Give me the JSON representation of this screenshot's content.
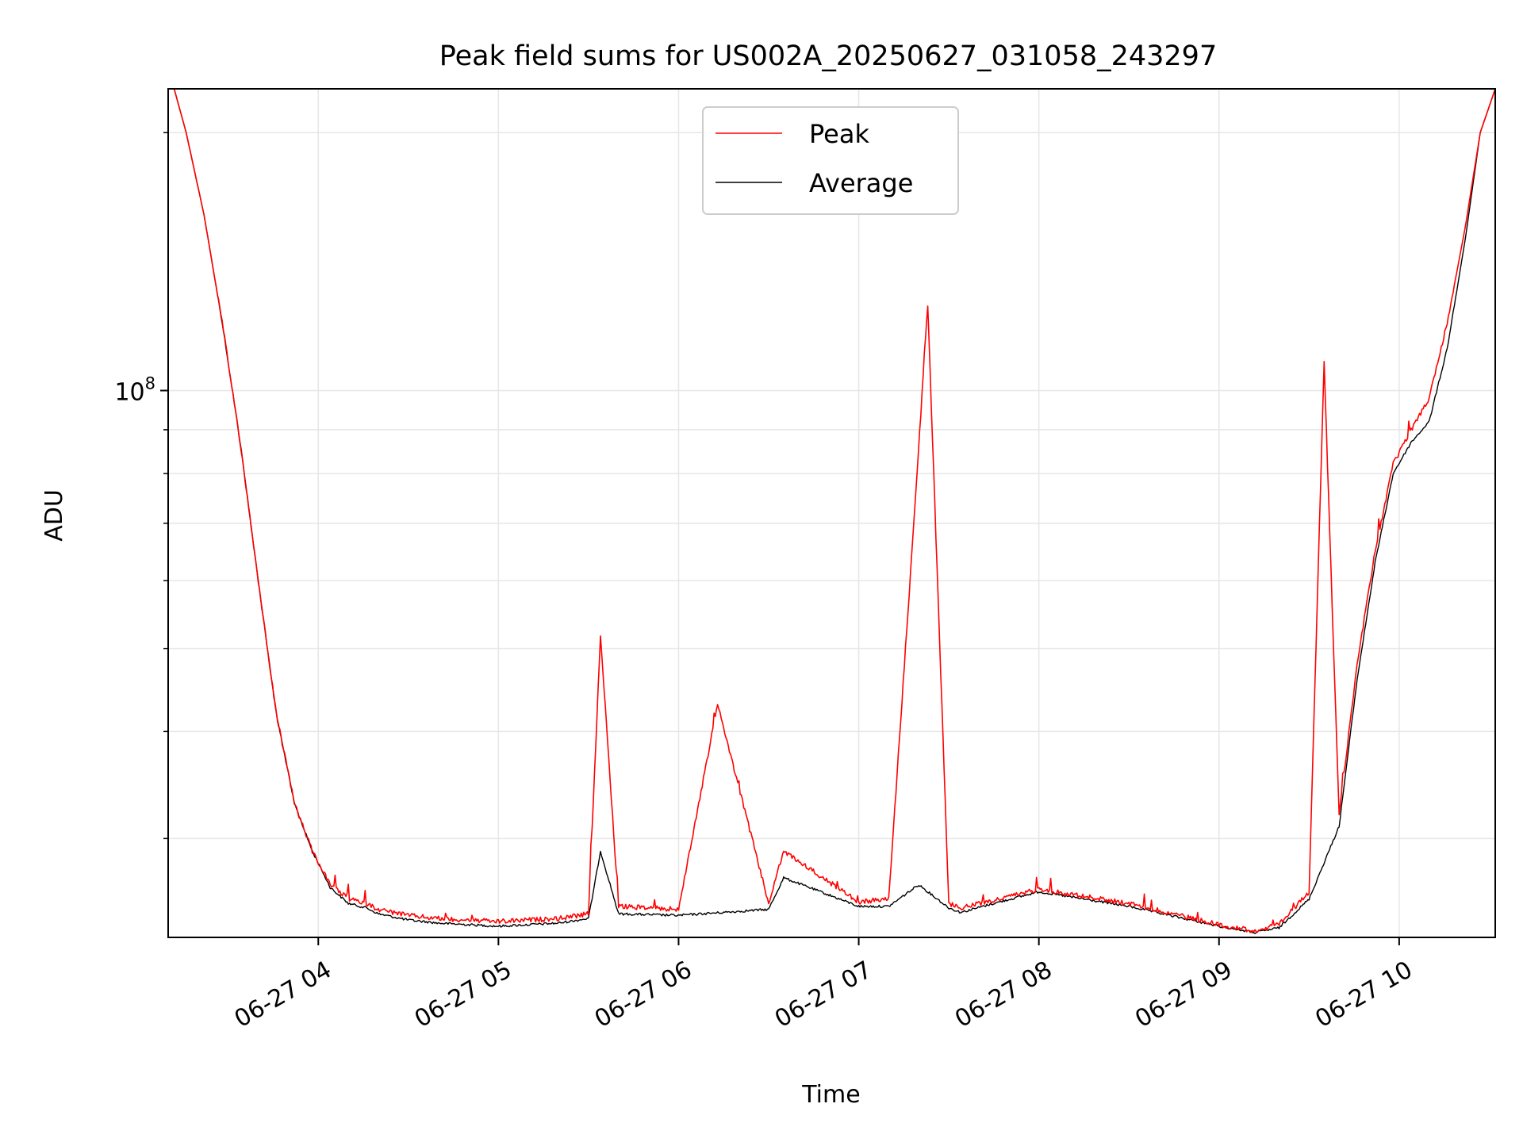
{
  "chart_data": {
    "type": "line",
    "title": "Peak field sums for US002A_20250627_031058_243297",
    "xlabel": "Time",
    "ylabel": "ADU",
    "yscale": "log",
    "grid": true,
    "legend_position": "top-center",
    "xlim": [
      "2025-06-27T03:10",
      "2025-06-27T10:32"
    ],
    "ylim": [
      23000000.0,
      225000000.0
    ],
    "x_ticks": [
      "2025-06-27T04:00",
      "2025-06-27T05:00",
      "2025-06-27T06:00",
      "2025-06-27T07:00",
      "2025-06-27T08:00",
      "2025-06-27T09:00",
      "2025-06-27T10:00"
    ],
    "x_tick_labels": [
      "06-27 04",
      "06-27 05",
      "06-27 06",
      "06-27 07",
      "06-27 08",
      "06-27 09",
      "06-27 10"
    ],
    "y_ticks": [
      100000000
    ],
    "y_tick_labels": [
      {
        "base": "10",
        "exp": "8"
      }
    ],
    "y_minor_ticks": [
      30000000,
      40000000,
      50000000,
      60000000,
      70000000,
      80000000,
      90000000,
      200000000
    ],
    "series": [
      {
        "name": "Peak",
        "color": "#ff0000",
        "x": [
          "2025-06-27T03:10",
          "2025-06-27T03:12",
          "2025-06-27T03:16",
          "2025-06-27T03:22",
          "2025-06-27T03:28",
          "2025-06-27T03:34",
          "2025-06-27T03:40",
          "2025-06-27T03:46",
          "2025-06-27T03:52",
          "2025-06-27T03:58",
          "2025-06-27T04:04",
          "2025-06-27T04:10",
          "2025-06-27T04:16",
          "2025-06-27T04:20",
          "2025-06-27T04:30",
          "2025-06-27T04:40",
          "2025-06-27T05:00",
          "2025-06-27T05:20",
          "2025-06-27T05:30",
          "2025-06-27T05:34",
          "2025-06-27T05:40",
          "2025-06-27T06:00",
          "2025-06-27T06:13",
          "2025-06-27T06:30",
          "2025-06-27T06:35",
          "2025-06-27T07:00",
          "2025-06-27T07:10",
          "2025-06-27T07:18",
          "2025-06-27T07:23",
          "2025-06-27T07:30",
          "2025-06-27T07:34",
          "2025-06-27T07:45",
          "2025-06-27T08:00",
          "2025-06-27T08:30",
          "2025-06-27T09:00",
          "2025-06-27T09:12",
          "2025-06-27T09:20",
          "2025-06-27T09:30",
          "2025-06-27T09:35",
          "2025-06-27T09:40",
          "2025-06-27T09:46",
          "2025-06-27T09:52",
          "2025-06-27T09:58",
          "2025-06-27T10:04",
          "2025-06-27T10:10",
          "2025-06-27T10:16",
          "2025-06-27T10:22",
          "2025-06-27T10:27",
          "2025-06-27T10:32"
        ],
        "y": [
          225000000,
          225000000,
          200000000,
          160000000,
          120000000,
          87000000,
          60000000,
          42000000,
          33000000,
          29000000,
          26500000,
          25500000,
          25200000,
          24800000,
          24400000,
          24200000,
          24000000,
          24200000,
          24500000,
          52000000,
          25000000,
          24800000,
          43000000,
          25200000,
          29000000,
          25300000,
          25500000,
          67000000,
          126000000,
          25200000,
          24900000,
          25400000,
          26200000,
          25200000,
          23800000,
          23400000,
          23800000,
          26000000,
          108000000,
          32000000,
          48000000,
          65000000,
          82000000,
          90000000,
          98000000,
          120000000,
          155000000,
          200000000,
          225000000
        ]
      },
      {
        "name": "Average",
        "color": "#000000",
        "x": [
          "2025-06-27T03:10",
          "2025-06-27T03:12",
          "2025-06-27T03:16",
          "2025-06-27T03:22",
          "2025-06-27T03:28",
          "2025-06-27T03:34",
          "2025-06-27T03:40",
          "2025-06-27T03:46",
          "2025-06-27T03:52",
          "2025-06-27T03:58",
          "2025-06-27T04:04",
          "2025-06-27T04:10",
          "2025-06-27T04:16",
          "2025-06-27T04:20",
          "2025-06-27T04:30",
          "2025-06-27T04:40",
          "2025-06-27T05:00",
          "2025-06-27T05:20",
          "2025-06-27T05:30",
          "2025-06-27T05:34",
          "2025-06-27T05:40",
          "2025-06-27T06:00",
          "2025-06-27T06:30",
          "2025-06-27T06:35",
          "2025-06-27T07:00",
          "2025-06-27T07:10",
          "2025-06-27T07:20",
          "2025-06-27T07:30",
          "2025-06-27T07:34",
          "2025-06-27T07:45",
          "2025-06-27T08:00",
          "2025-06-27T08:30",
          "2025-06-27T09:00",
          "2025-06-27T09:12",
          "2025-06-27T09:20",
          "2025-06-27T09:30",
          "2025-06-27T09:40",
          "2025-06-27T09:46",
          "2025-06-27T09:52",
          "2025-06-27T09:58",
          "2025-06-27T10:04",
          "2025-06-27T10:10",
          "2025-06-27T10:16",
          "2025-06-27T10:22",
          "2025-06-27T10:27",
          "2025-06-27T10:32"
        ],
        "y": [
          225000000,
          225000000,
          200000000,
          160000000,
          120000000,
          87000000,
          60000000,
          42000000,
          33000000,
          29000000,
          26300000,
          25200000,
          24900000,
          24500000,
          24100000,
          23900000,
          23700000,
          23900000,
          24200000,
          29000000,
          24500000,
          24400000,
          24800000,
          27000000,
          25000000,
          25000000,
          26500000,
          24900000,
          24600000,
          25200000,
          26000000,
          25000000,
          23700000,
          23300000,
          23600000,
          25500000,
          31000000,
          46000000,
          63000000,
          80000000,
          87000000,
          92000000,
          112000000,
          150000000,
          200000000,
          225000000
        ]
      }
    ]
  }
}
